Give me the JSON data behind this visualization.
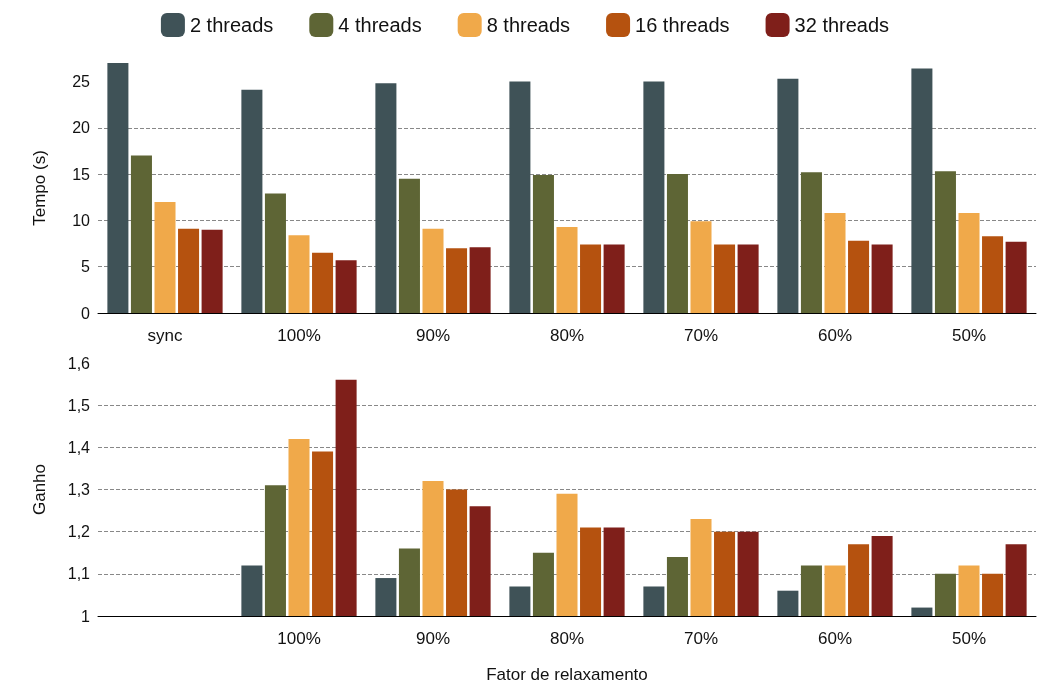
{
  "chart_data": [
    {
      "type": "bar",
      "ylabel": "Tempo (s)",
      "ylim": [
        0,
        27
      ],
      "categories": [
        "sync",
        "100%",
        "90%",
        "80%",
        "70%",
        "60%",
        "50%"
      ],
      "yticks": [
        0,
        5,
        10,
        15,
        20,
        25
      ],
      "grid": "y",
      "legend": "top",
      "series": [
        {
          "name": "2 threads",
          "color": "#3f5257",
          "values": [
            27.0,
            24.1,
            24.8,
            25.0,
            25.0,
            25.3,
            26.4
          ]
        },
        {
          "name": "4 threads",
          "color": "#5e6535",
          "values": [
            17.0,
            12.9,
            14.5,
            14.9,
            15.0,
            15.2,
            15.3
          ]
        },
        {
          "name": "8 threads",
          "color": "#f0a94a",
          "values": [
            12.0,
            8.4,
            9.1,
            9.3,
            9.9,
            10.8,
            10.8
          ]
        },
        {
          "name": "16 threads",
          "color": "#b5520f",
          "values": [
            9.1,
            6.5,
            7.0,
            7.4,
            7.4,
            7.8,
            8.3
          ]
        },
        {
          "name": "32 threads",
          "color": "#7f1f1a",
          "values": [
            9.0,
            5.7,
            7.1,
            7.4,
            7.4,
            7.4,
            7.7
          ]
        }
      ]
    },
    {
      "type": "bar",
      "ylabel": "Ganho",
      "xlabel": "Fator de relaxamento",
      "categories": [
        null,
        "100%",
        "90%",
        "80%",
        "70%",
        "60%",
        "50%"
      ],
      "ylim": [
        1,
        1.6
      ],
      "yticks": [
        {
          "value": 1,
          "label": "1"
        },
        {
          "value": 1.1,
          "label": "1,1"
        },
        {
          "value": 1.2,
          "label": "1,2"
        },
        {
          "value": 1.3,
          "label": "1,3"
        },
        {
          "value": 1.4,
          "label": "1,4"
        },
        {
          "value": 1.5,
          "label": "1,5"
        },
        {
          "value": 1.6,
          "label": "1,6"
        }
      ],
      "grid": "y",
      "series": [
        {
          "color": "#3f5257",
          "values": [
            null,
            1.12,
            1.09,
            1.07,
            1.07,
            1.06,
            1.02
          ]
        },
        {
          "color": "#5e6535",
          "values": [
            null,
            1.31,
            1.16,
            1.15,
            1.14,
            1.12,
            1.1
          ]
        },
        {
          "color": "#f0a94a",
          "values": [
            null,
            1.42,
            1.32,
            1.29,
            1.23,
            1.12,
            1.12
          ]
        },
        {
          "color": "#b5520f",
          "values": [
            null,
            1.39,
            1.3,
            1.21,
            1.2,
            1.17,
            1.1
          ]
        },
        {
          "color": "#7f1f1a",
          "values": [
            null,
            1.56,
            1.26,
            1.21,
            1.2,
            1.19,
            1.17
          ]
        }
      ]
    }
  ]
}
